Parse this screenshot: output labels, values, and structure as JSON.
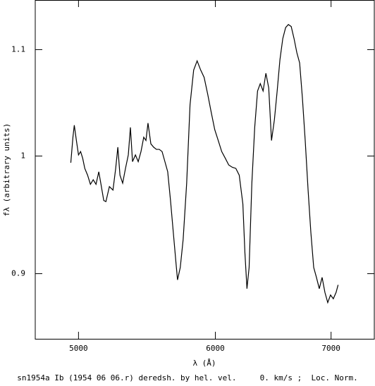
{
  "chart_data": {
    "type": "line",
    "xlabel": "λ (Å)",
    "ylabel": "fλ (arbitrary units)",
    "caption": "sn1954a Ib (1954 06 06.r) deredsh. by hel. vel.     0. km/s ;  Loc. Norm.",
    "xscale": "log",
    "yscale": "log",
    "xlim": [
      4720,
      7415
    ],
    "ylim": [
      0.849,
      1.15
    ],
    "xticks": [
      5000,
      6000,
      7000
    ],
    "yticks": [
      0.9,
      1,
      1.1
    ],
    "color": "#000000",
    "x": [
      4949,
      4963,
      4972,
      4986,
      5000,
      5014,
      5028,
      5042,
      5061,
      5080,
      5099,
      5118,
      5137,
      5152,
      5171,
      5186,
      5210,
      5235,
      5254,
      5269,
      5284,
      5303,
      5323,
      5343,
      5358,
      5373,
      5394,
      5414,
      5434,
      5454,
      5470,
      5485,
      5506,
      5526,
      5547,
      5568,
      5589,
      5610,
      5631,
      5652,
      5673,
      5694,
      5705,
      5726,
      5748,
      5775,
      5801,
      5829,
      5856,
      5884,
      5911,
      5939,
      5967,
      5995,
      6023,
      6051,
      6080,
      6108,
      6137,
      6166,
      6194,
      6224,
      6241,
      6258,
      6276,
      6299,
      6323,
      6347,
      6370,
      6394,
      6418,
      6442,
      6466,
      6491,
      6515,
      6539,
      6564,
      6589,
      6613,
      6638,
      6663,
      6688,
      6713,
      6738,
      6763,
      6789,
      6814,
      6840,
      6865,
      6891,
      6917,
      6943,
      6969,
      6995,
      7021,
      7047,
      7066
    ],
    "values": [
      0.994,
      1.017,
      1.028,
      1.014,
      1.001,
      1.004,
      0.998,
      0.989,
      0.983,
      0.975,
      0.979,
      0.975,
      0.986,
      0.975,
      0.961,
      0.96,
      0.973,
      0.97,
      0.989,
      1.008,
      0.983,
      0.976,
      0.989,
      1.001,
      1.026,
      0.995,
      1.001,
      0.995,
      1.004,
      1.017,
      1.014,
      1.03,
      1.011,
      1.008,
      1.006,
      1.006,
      1.004,
      0.995,
      0.986,
      0.961,
      0.934,
      0.908,
      0.895,
      0.905,
      0.928,
      0.976,
      1.047,
      1.08,
      1.089,
      1.08,
      1.073,
      1.057,
      1.04,
      1.024,
      1.014,
      1.004,
      0.998,
      0.992,
      0.99,
      0.989,
      0.983,
      0.958,
      0.917,
      0.888,
      0.905,
      0.976,
      1.026,
      1.06,
      1.067,
      1.06,
      1.077,
      1.063,
      1.014,
      1.033,
      1.06,
      1.09,
      1.111,
      1.122,
      1.125,
      1.123,
      1.111,
      1.097,
      1.087,
      1.053,
      1.014,
      0.97,
      0.934,
      0.905,
      0.897,
      0.888,
      0.897,
      0.885,
      0.877,
      0.883,
      0.88,
      0.885,
      0.891
    ]
  }
}
